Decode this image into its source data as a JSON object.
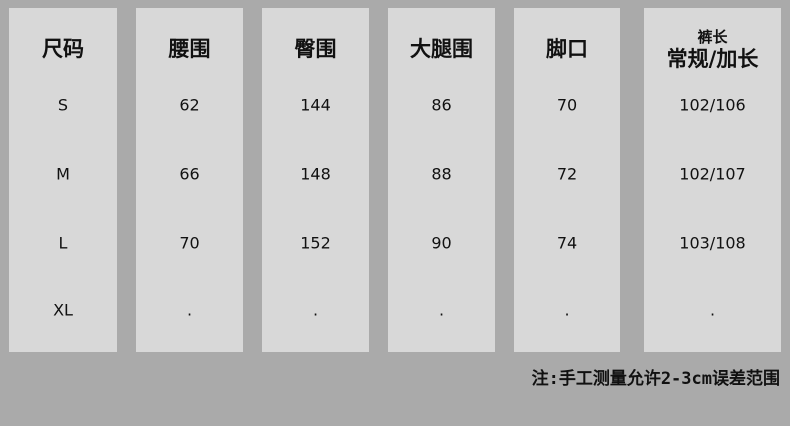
{
  "columns": [
    {
      "header": "尺码",
      "values": [
        "S",
        "M",
        "L",
        "XL"
      ]
    },
    {
      "header": "腰围",
      "values": [
        "62",
        "66",
        "70",
        "."
      ]
    },
    {
      "header": "臀围",
      "values": [
        "144",
        "148",
        "152",
        "."
      ]
    },
    {
      "header": "大腿围",
      "values": [
        "86",
        "88",
        "90",
        "."
      ]
    },
    {
      "header": "脚口",
      "values": [
        "70",
        "72",
        "74",
        "."
      ]
    },
    {
      "header_sub": "裤长",
      "header": "常规/加长",
      "values": [
        "102/106",
        "102/107",
        "103/108",
        "."
      ]
    }
  ],
  "note": "注:手工测量允许2-3cm误差范围",
  "colors": {
    "background": "#aaaaaa",
    "column": "#d8d8d8",
    "text": "#111111"
  }
}
